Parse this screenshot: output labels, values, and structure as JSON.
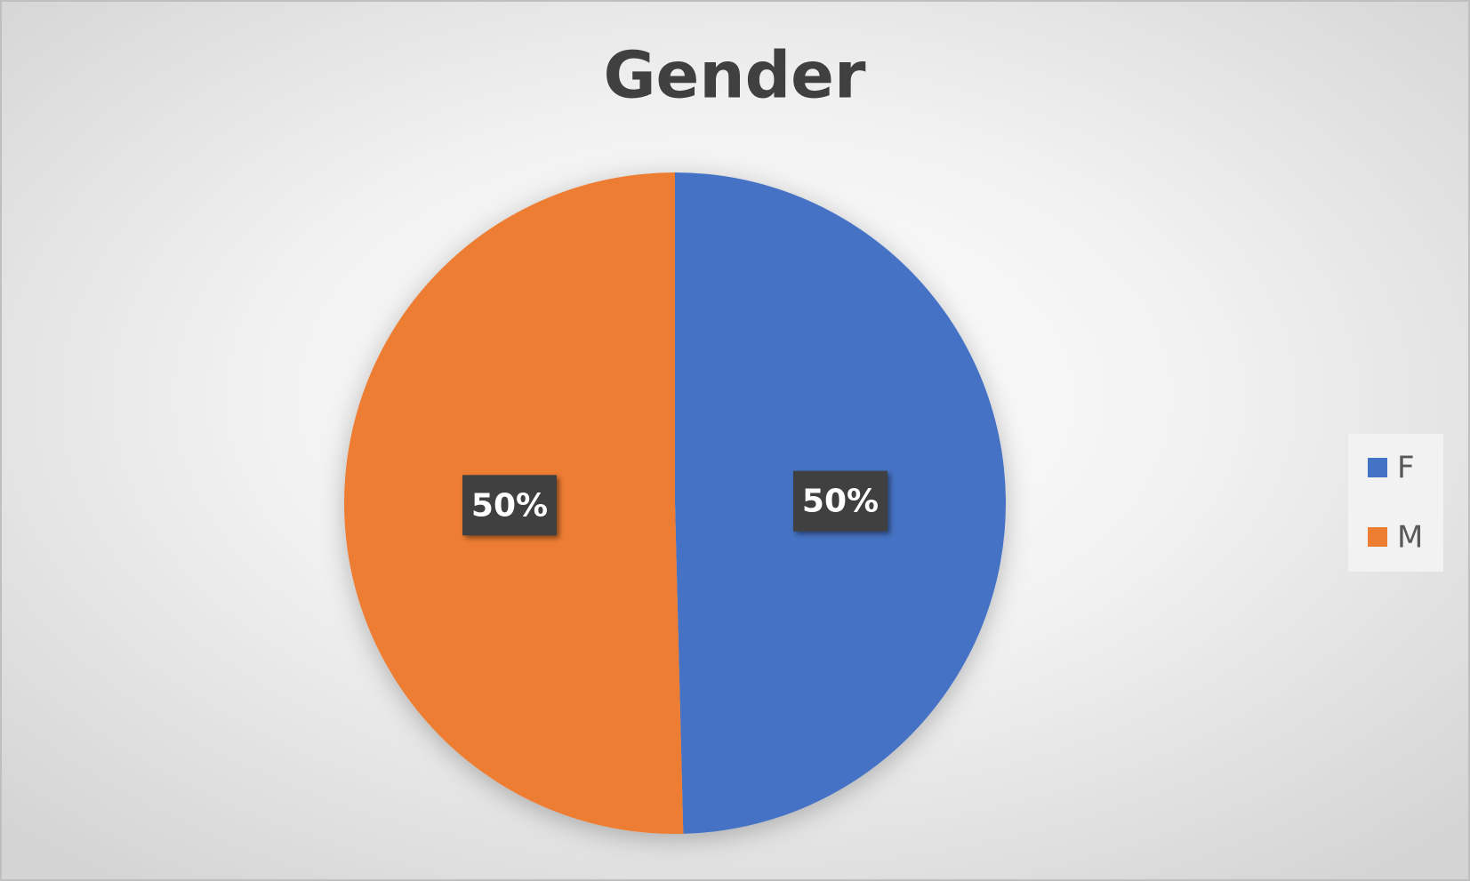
{
  "chart_data": {
    "type": "pie",
    "title": "Gender",
    "categories": [
      "F",
      "M"
    ],
    "series": [
      {
        "name": "Gender",
        "values": [
          49.6,
          50.4
        ],
        "value_labels": [
          "50%",
          "50%"
        ],
        "colors": [
          "#4472c4",
          "#ed7d31"
        ]
      }
    ],
    "legend": "right"
  }
}
